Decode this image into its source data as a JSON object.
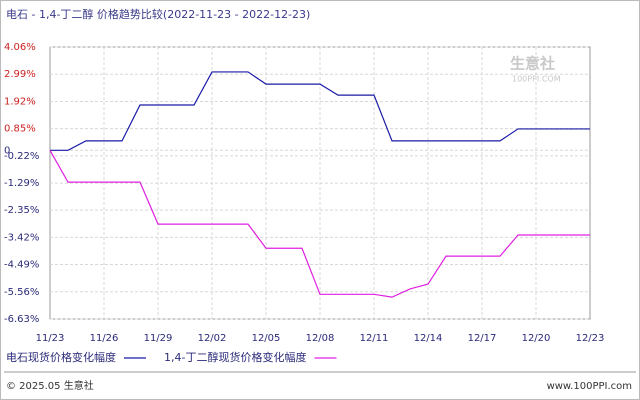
{
  "chart_data": {
    "type": "line",
    "title": "电石 - 1,4-丁二醇 价格趋势比较(2022-11-23 - 2022-12-23)",
    "watermark": "生意社",
    "watermark_sub": "100PPI.COM",
    "categories": [
      "11/23",
      null,
      null,
      "11/26",
      null,
      null,
      "11/29",
      null,
      null,
      "12/02",
      null,
      null,
      "12/05",
      null,
      null,
      "12/08",
      null,
      null,
      "12/11",
      null,
      null,
      "12/14",
      null,
      null,
      "12/17",
      null,
      null,
      "12/20",
      null,
      null,
      "12/23"
    ],
    "series": [
      {
        "name": "电石现货价格变化幅度",
        "color": "#1a1aa6",
        "values": [
          0,
          0,
          0.37,
          0.37,
          0.37,
          1.78,
          1.78,
          1.78,
          1.78,
          3.08,
          3.08,
          3.08,
          2.6,
          2.6,
          2.6,
          2.6,
          2.17,
          2.17,
          2.17,
          0.37,
          0.37,
          0.37,
          0.37,
          0.37,
          0.37,
          0.37,
          0.84,
          0.84,
          0.84,
          0.84,
          0.84
        ]
      },
      {
        "name": "1,4-丁二醇现货价格变化幅度",
        "color": "#e020e0",
        "values": [
          0,
          -1.25,
          -1.25,
          -1.25,
          -1.25,
          -1.25,
          -2.9,
          -2.9,
          -2.9,
          -2.9,
          -2.9,
          -2.9,
          -3.85,
          -3.85,
          -3.85,
          -5.66,
          -5.66,
          -5.66,
          -5.66,
          -5.77,
          -5.45,
          -5.26,
          -4.16,
          -4.16,
          -4.16,
          -4.16,
          -3.33,
          -3.33,
          -3.33,
          -3.33,
          -3.33
        ]
      }
    ],
    "ylim": [
      -6.63,
      4.06
    ],
    "yticks": [
      {
        "value": 4.06,
        "label": "4.06%"
      },
      {
        "value": 2.99,
        "label": "2.99%"
      },
      {
        "value": 1.92,
        "label": "1.92%"
      },
      {
        "value": 0.85,
        "label": "0.85%"
      },
      0,
      {
        "value": -0.22,
        "label": "-0.22%"
      },
      {
        "value": -1.29,
        "label": "-1.29%"
      },
      {
        "value": -2.35,
        "label": "-2.35%"
      },
      {
        "value": -3.42,
        "label": "-3.42%"
      },
      {
        "value": -4.49,
        "label": "-4.49%"
      },
      {
        "value": -5.56,
        "label": "-5.56%"
      },
      {
        "value": -6.63,
        "label": "-6.63%"
      }
    ],
    "grid": true
  },
  "footer": {
    "left": "© 2025.05 生意社",
    "right": "www.100PPI.com"
  }
}
